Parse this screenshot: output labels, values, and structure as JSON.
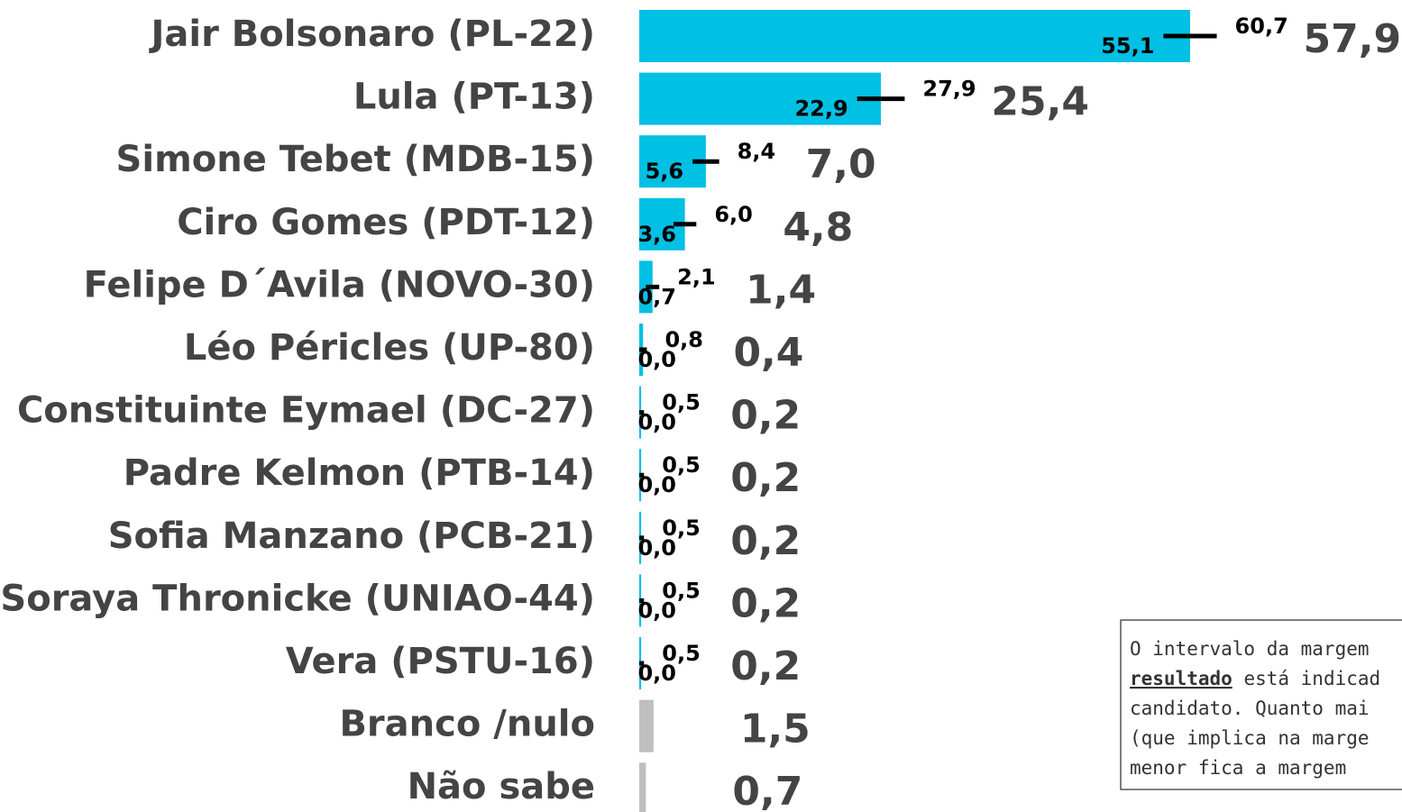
{
  "chart_data": {
    "type": "bar",
    "categories": [
      "Jair Bolsonaro (PL-22)",
      "Lula (PT-13)",
      "Simone Tebet (MDB-15)",
      "Ciro Gomes (PDT-12)",
      "Felipe D´Avila (NOVO-30)",
      "Léo Péricles (UP-80)",
      "Constituinte Eymael (DC-27)",
      "Padre Kelmon (PTB-14)",
      "Sofia Manzano (PCB-21)",
      "Soraya Thronicke (UNIAO-44)",
      "Vera (PSTU-16)",
      "Branco /nulo",
      "Não sabe"
    ],
    "values": [
      57.9,
      25.4,
      7.0,
      4.8,
      1.4,
      0.4,
      0.2,
      0.2,
      0.2,
      0.2,
      0.2,
      1.5,
      0.7
    ],
    "value_labels": [
      "57,9",
      "25,4",
      "7,0",
      "4,8",
      "1,4",
      "0,4",
      "0,2",
      "0,2",
      "0,2",
      "0,2",
      "0,2",
      "1,5",
      "0,7"
    ],
    "lower": [
      55.1,
      22.9,
      5.6,
      3.6,
      0.7,
      0.0,
      0.0,
      0.0,
      0.0,
      0.0,
      0.0,
      null,
      null
    ],
    "lower_labels": [
      "55,1",
      "22,9",
      "5,6",
      "3,6",
      "0,7",
      "0,0",
      "0,0",
      "0,0",
      "0,0",
      "0,0",
      "0,0",
      null,
      null
    ],
    "upper": [
      60.7,
      27.9,
      8.4,
      6.0,
      2.1,
      0.8,
      0.5,
      0.5,
      0.5,
      0.5,
      0.5,
      null,
      null
    ],
    "upper_labels": [
      "60,7",
      "27,9",
      "8,4",
      "6,0",
      "2,1",
      "0,8",
      "0,5",
      "0,5",
      "0,5",
      "0,5",
      "0,5",
      null,
      null
    ],
    "colors": [
      "#00c0e4",
      "#00c0e4",
      "#00c0e4",
      "#00c0e4",
      "#00c0e4",
      "#00c0e4",
      "#00c0e4",
      "#00c0e4",
      "#00c0e4",
      "#00c0e4",
      "#00c0e4",
      "#bfbfbf",
      "#bfbfbf"
    ],
    "xlim": [
      0,
      80
    ]
  },
  "note": {
    "lines": [
      [
        "O intervalo da margem"
      ],
      [
        "resultado",
        " está indicad"
      ],
      [
        "candidato. Quanto mai"
      ],
      [
        "(que implica na marge"
      ],
      [
        "menor fica a margem"
      ]
    ]
  }
}
